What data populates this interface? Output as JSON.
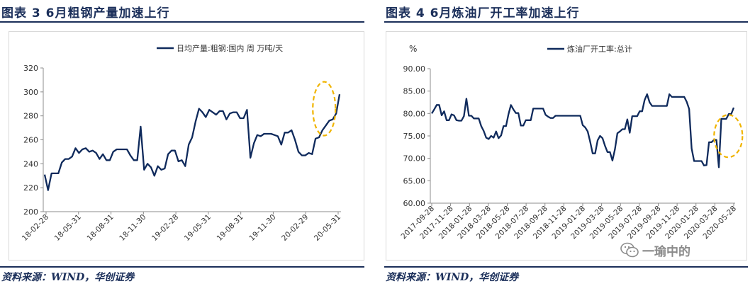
{
  "left": {
    "title": "图表 3   6月粗钢产量加速上行",
    "source": "资料来源：WIND，华创证券"
  },
  "right": {
    "title": "图表 4   6月炼油厂开工率加速上行",
    "source": "资料来源：WIND，华创证券"
  },
  "watermark": {
    "text": "一瑜中的",
    "icon": "wechat-bubble-icon"
  },
  "colors": {
    "line": "#0f2a5c",
    "highlight": "#f0b400",
    "grid": "#d9d9d9",
    "title": "#1b2f5a"
  },
  "chart_data": [
    {
      "type": "line",
      "legend": "日均产量:粗钢:国内 周 万吨/天",
      "legend_position": "top-center",
      "ylim": [
        200,
        320
      ],
      "yticks": [
        "200",
        "220",
        "240",
        "260",
        "280",
        "300",
        "320"
      ],
      "xlabels": [
        "18-02-28",
        "18-05-31",
        "18-08-31",
        "18-11-30",
        "19-02-28",
        "19-05-31",
        "19-08-31",
        "19-11-30",
        "20-02-29",
        "20-05-31"
      ],
      "grid": false,
      "series": [
        {
          "name": "日均产量:粗钢:国内 周 万吨/天",
          "values": [
            231,
            218,
            232,
            232,
            232,
            241,
            244,
            244,
            246,
            253,
            249,
            252,
            253,
            250,
            251,
            249,
            244,
            248,
            243,
            243,
            250,
            252,
            252,
            252,
            252,
            247,
            243,
            243,
            271,
            235,
            240,
            237,
            230,
            238,
            235,
            236,
            248,
            251,
            251,
            242,
            243,
            238,
            256,
            262,
            275,
            286,
            283,
            279,
            285,
            283,
            281,
            284,
            284,
            277,
            282,
            283,
            283,
            278,
            278,
            285,
            245,
            257,
            264,
            263,
            265,
            265,
            265,
            264,
            263,
            256,
            266,
            266,
            268,
            260,
            250,
            247,
            247,
            249,
            248,
            261,
            262,
            268,
            272,
            276,
            277,
            282,
            298
          ]
        }
      ],
      "highlight": {
        "shape": "dashed-ellipse",
        "around": "latest values"
      }
    },
    {
      "type": "line",
      "legend": "炼油厂开工率:总计",
      "legend_position": "top-center",
      "yunit": "%",
      "ylim": [
        60,
        90
      ],
      "yticks": [
        "60.00",
        "65.00",
        "70.00",
        "75.00",
        "80.00",
        "85.00",
        "90.00"
      ],
      "xlabels": [
        "2017-09-28",
        "2017-11-28",
        "2018-01-28",
        "2018-03-28",
        "2018-05-28",
        "2018-07-28",
        "2018-09-28",
        "2018-11-28",
        "2019-01-28",
        "2019-03-28",
        "2019-05-28",
        "2019-07-28",
        "2019-09-28",
        "2019-11-28",
        "2020-01-28",
        "2020-03-28",
        "2020-05-28"
      ],
      "grid": false,
      "series": [
        {
          "name": "炼油厂开工率:总计",
          "values": [
            80.0,
            80.9,
            81.9,
            81.9,
            79.6,
            80.5,
            78.5,
            78.5,
            79.8,
            79.6,
            78.5,
            78.4,
            78.4,
            79.4,
            83.3,
            79.5,
            79.5,
            78.9,
            78.9,
            78.9,
            77.2,
            76.1,
            74.6,
            74.3,
            75.0,
            74.6,
            76.0,
            74.5,
            75.1,
            77.2,
            77.2,
            79.8,
            81.9,
            80.9,
            80.1,
            80.1,
            77.3,
            77.3,
            78.5,
            78.5,
            78.5,
            81.1,
            81.1,
            81.1,
            81.1,
            81.1,
            79.7,
            79.3,
            79.0,
            79.0,
            79.5,
            79.5,
            79.5,
            79.5,
            79.5,
            79.5,
            79.5,
            79.5,
            79.5,
            79.5,
            79.5,
            77.4,
            76.9,
            76.0,
            73.7,
            71.1,
            71.1,
            74.0,
            75.0,
            74.5,
            72.8,
            71.4,
            71.4,
            69.5,
            72.0,
            75.6,
            76.0,
            76.5,
            76.5,
            78.7,
            75.7,
            79.4,
            79.4,
            79.4,
            80.5,
            80.5,
            83.0,
            84.3,
            82.5,
            81.7,
            81.7,
            81.7,
            81.7,
            81.7,
            81.7,
            81.7,
            84.3,
            83.7,
            83.7,
            83.7,
            83.7,
            83.7,
            83.7,
            82.6,
            81.0,
            72.2,
            69.4,
            69.4,
            69.4,
            69.4,
            68.4,
            68.5,
            73.6,
            73.6,
            74.1,
            74.1,
            68.0,
            78.8,
            78.8,
            78.8,
            79.9,
            79.9,
            81.3
          ]
        }
      ],
      "highlight": {
        "shape": "dashed-ellipse",
        "around": "latest values"
      }
    }
  ]
}
